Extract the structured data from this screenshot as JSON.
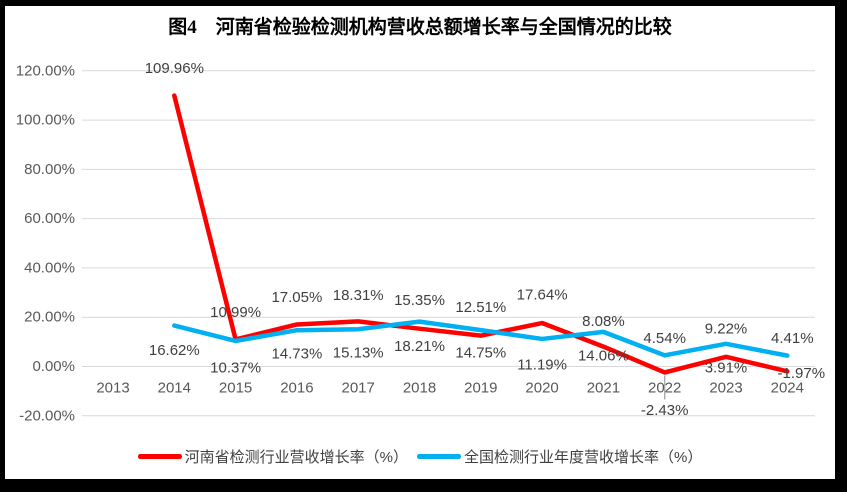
{
  "window": {
    "background": "#000000",
    "canvas_background": "#ffffff"
  },
  "chart_data": {
    "type": "line",
    "title": "图4　河南省检验检测机构营收总额增长率与全国情况的比较",
    "categories": [
      "2013",
      "2014",
      "2015",
      "2016",
      "2017",
      "2018",
      "2019",
      "2020",
      "2021",
      "2022",
      "2023",
      "2024"
    ],
    "series": [
      {
        "key": "henan",
        "name": "河南省检测行业营收增长率（%）",
        "color": "#FF0000",
        "values": [
          null,
          109.96,
          10.99,
          17.05,
          18.31,
          15.35,
          12.51,
          17.64,
          8.08,
          -2.43,
          3.91,
          -1.97
        ]
      },
      {
        "key": "national",
        "name": "全国检测行业年度营收增长率（%）",
        "color": "#00B0F0",
        "values": [
          null,
          16.62,
          10.37,
          14.73,
          15.13,
          18.21,
          14.75,
          11.19,
          14.06,
          4.54,
          9.22,
          4.41
        ]
      }
    ],
    "ylim": [
      -20,
      120
    ],
    "ytick_step": 20,
    "ytick_labels": [
      "-20.00%",
      "0.00%",
      "20.00%",
      "40.00%",
      "60.00%",
      "80.00%",
      "100.00%",
      "120.00%"
    ],
    "data_label_format": "0.00%",
    "grid": true,
    "legend_position": "bottom",
    "colors": {
      "gridline": "#D9D9D9",
      "axis_text": "#595959",
      "data_label_text": "#404040",
      "leader_line": "#A6A6A6"
    },
    "label_layout": {
      "henan": [
        null,
        [
          0,
          -27
        ],
        [
          0,
          -27
        ],
        [
          0,
          -27
        ],
        [
          0,
          -26
        ],
        [
          0,
          -28
        ],
        [
          0,
          -28
        ],
        [
          0,
          -28
        ],
        [
          0,
          -25
        ],
        [
          0,
          38
        ],
        [
          0,
          11
        ],
        [
          14,
          2
        ]
      ],
      "national": [
        null,
        [
          0,
          25
        ],
        [
          0,
          27
        ],
        [
          0,
          24
        ],
        [
          0,
          24
        ],
        [
          0,
          25
        ],
        [
          0,
          23
        ],
        [
          0,
          26
        ],
        [
          0,
          24
        ],
        [
          0,
          -17
        ],
        [
          0,
          -15
        ],
        [
          5,
          -17
        ]
      ]
    },
    "leader_lines": [
      {
        "series": "henan",
        "index": 9,
        "from_dy": 3,
        "to_dy": 27
      }
    ]
  }
}
